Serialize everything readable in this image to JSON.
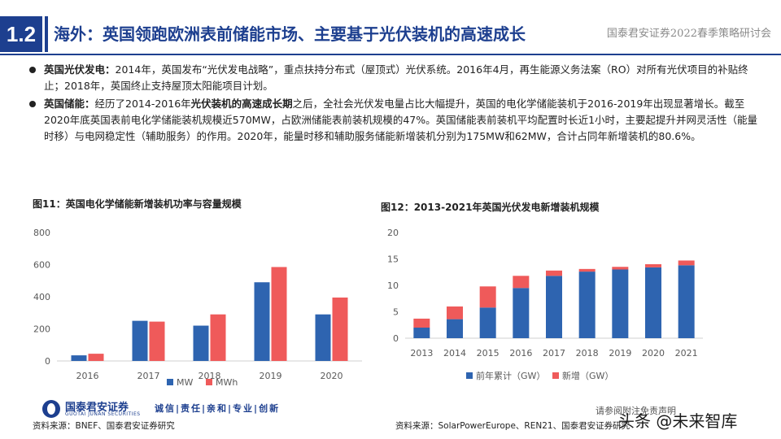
{
  "header": {
    "section_number": "1.2",
    "title": "海外：英国领跑欧洲表前储能市场、主要基于光伏装机的高速成长",
    "conference": "国泰君安证券2022春季策略研讨会"
  },
  "bullets": [
    {
      "label": "英国光伏发电：",
      "text": "2014年，英国发布“光伏发电战略”，重点扶持分布式（屋顶式）光伏系统。2016年4月，再生能源义务法案（RO）对所有光伏项目的补贴终止；2018年，英国终止支持屋顶太阳能项目计划。"
    },
    {
      "label": "英国储能：",
      "text_before": "经历了2014-2016年",
      "text_bold": "光伏装机的高速成长期",
      "text_after": "之后，全社会光伏发电量占比大幅提升，英国的电化学储能装机于2016-2019年出现显著增长。截至2020年底英国表前电化学储能装机规模近570MW，占欧洲储能表前装机规模的47%。英国储能表前装机平均配置时长近1小时，主要起提升并网灵活性（能量时移）与电网稳定性（辅助服务）的作用。2020年，能量时移和辅助服务储能新增装机分别为175MW和62MW，合计占同年新增装机的80.6%。"
    }
  ],
  "colors": {
    "brand": "#1d3f8f",
    "series_blue": "#2e64b0",
    "series_red": "#ef5a5a"
  },
  "figure1": {
    "title": "图11：英国电化学储能新增装机功率与容量规模"
  },
  "figure2": {
    "title": "图12：2013-2021年英国光伏发电新增装机规模"
  },
  "chart_data": [
    {
      "type": "bar",
      "title": "图11：英国电化学储能新增装机功率与容量规模",
      "categories": [
        "2016",
        "2017",
        "2018",
        "2019",
        "2020"
      ],
      "series": [
        {
          "name": "MW",
          "color": "#2e64b0",
          "values": [
            35,
            250,
            220,
            490,
            290
          ]
        },
        {
          "name": "MWh",
          "color": "#ef5a5a",
          "values": [
            45,
            245,
            290,
            585,
            395
          ]
        }
      ],
      "yticks": [
        "0",
        "200",
        "400",
        "600",
        "800"
      ],
      "ylim": [
        0,
        800
      ],
      "legend": "bottom"
    },
    {
      "type": "bar",
      "stacked": true,
      "title": "图12：2013-2021年英国光伏发电新增装机规模",
      "categories": [
        "2013",
        "2014",
        "2015",
        "2016",
        "2017",
        "2018",
        "2019",
        "2020",
        "2021"
      ],
      "series": [
        {
          "name": "前年累计（GW）",
          "color": "#2e64b0",
          "values": [
            2.0,
            3.6,
            5.8,
            9.5,
            11.8,
            12.6,
            13.0,
            13.4,
            13.8
          ]
        },
        {
          "name": "新增（GW）",
          "color": "#ef5a5a",
          "values": [
            1.7,
            2.4,
            4.0,
            2.3,
            1.0,
            0.5,
            0.5,
            0.6,
            0.9
          ]
        }
      ],
      "yticks": [
        "0",
        "5",
        "10",
        "15",
        "20"
      ],
      "ylim": [
        0,
        20
      ],
      "legend": "bottom"
    }
  ],
  "footer": {
    "logo_cn": "国泰君安证券",
    "logo_en": "GUOTAI JUNAN SECURITIES",
    "slogan": "诚信|责任|亲和|专业|创新",
    "source1": "资料来源：BNEF、国泰君安证券研究",
    "source2": "资料来源：SolarPowerEurope、REN21、国泰君安证券研究",
    "disclaimer": "请参阅附注免责声明",
    "watermark": "头条 @未来智库"
  }
}
